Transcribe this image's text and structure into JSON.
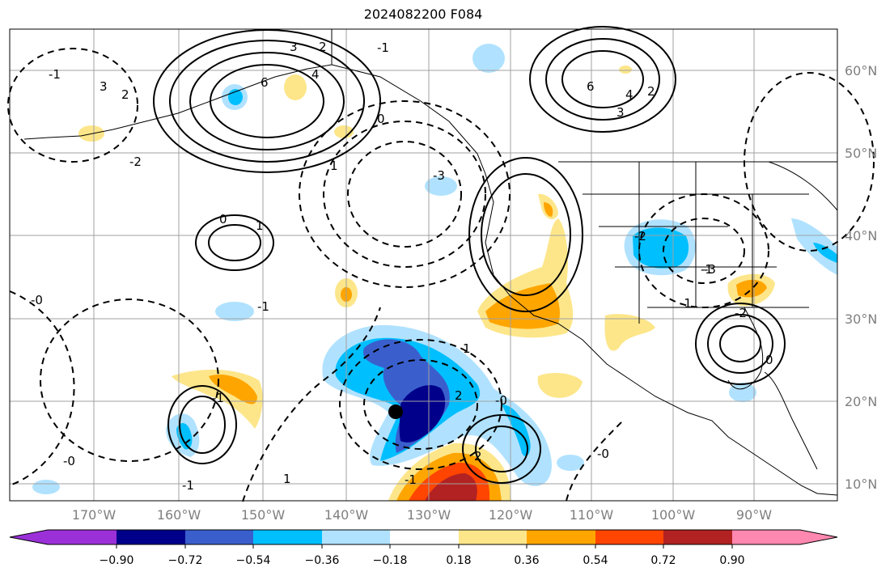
{
  "title": "2024082200 F084",
  "map": {
    "lon_labels": [
      "170°W",
      "160°W",
      "150°W",
      "140°W",
      "130°W",
      "120°W",
      "110°W",
      "100°W",
      "90°W"
    ],
    "lat_labels": [
      "60°N",
      "50°N",
      "40°N",
      "30°N",
      "20°N",
      "10°N"
    ],
    "gridlines": true,
    "storm_marker": {
      "lon": -134,
      "lat": 19
    },
    "contour_labels": [
      "3",
      "2",
      "4",
      "6",
      "3",
      "2",
      "-1",
      "0",
      "6",
      "4",
      "3",
      "2",
      "-1",
      "1",
      "-2",
      "-3",
      "0",
      "1",
      "-1",
      "-0",
      "-2",
      "-1",
      "1",
      "2",
      "-0",
      "-1",
      "0",
      "-1",
      "-0",
      "-1",
      "-3",
      "-2",
      "-1",
      "-0",
      "1",
      "2"
    ]
  },
  "colorbar": {
    "tick_labels": [
      "−0.90",
      "−0.72",
      "−0.54",
      "−0.36",
      "−0.18",
      "0.18",
      "0.36",
      "0.54",
      "0.72",
      "0.90"
    ],
    "colors": [
      "#9b30d9",
      "#00008b",
      "#3a5fcd",
      "#00bfff",
      "#b0e2ff",
      "#ffffff",
      "#fde68a",
      "#ffa500",
      "#ff4500",
      "#b22222",
      "#ff88b0"
    ],
    "extend": "both"
  }
}
